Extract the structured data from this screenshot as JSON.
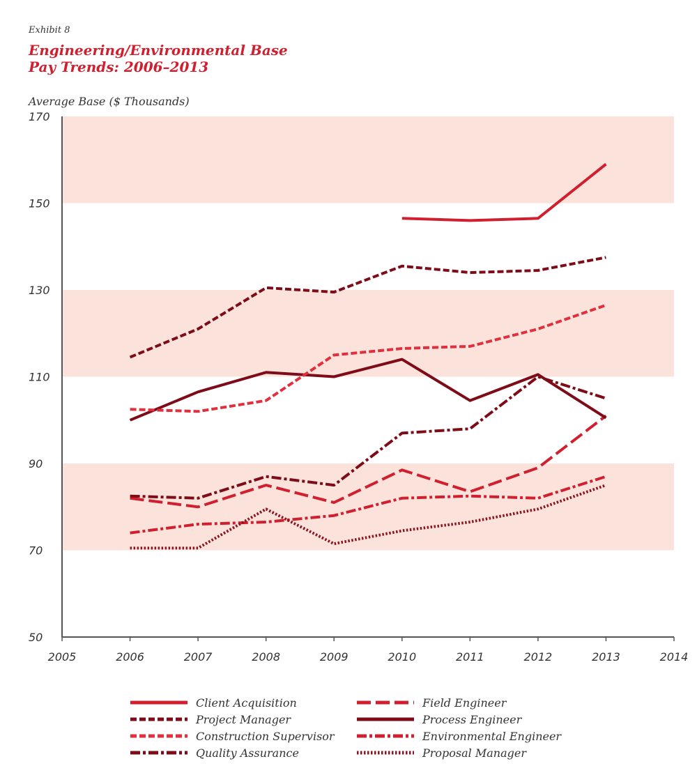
{
  "exhibit": "Exhibit 8",
  "title_lines": [
    "Engineering/Environmental Base",
    "Pay Trends: 2006–2013"
  ],
  "chart_data": {
    "type": "line",
    "ylabel": "Average Base ($ Thousands)",
    "xlim": [
      2005,
      2014
    ],
    "ylim": [
      50,
      170
    ],
    "x_ticks": [
      2005,
      2006,
      2007,
      2008,
      2009,
      2010,
      2011,
      2012,
      2013,
      2014
    ],
    "y_ticks": [
      50,
      70,
      90,
      110,
      130,
      150,
      170
    ],
    "bands": [
      [
        70,
        90
      ],
      [
        110,
        130
      ],
      [
        150,
        170
      ]
    ],
    "band_color": "#fbe3dc",
    "legend_placement": "bottom",
    "series": [
      {
        "name": "Client Acquisition",
        "color": "#d0202f",
        "style": "solid",
        "x": [
          2010,
          2011,
          2012,
          2013
        ],
        "y": [
          146.5,
          146,
          146.5,
          159
        ]
      },
      {
        "name": "Field Engineer",
        "color": "#d0202f",
        "style": "longdash",
        "x": [
          2006,
          2007,
          2008,
          2009,
          2010,
          2011,
          2012,
          2013
        ],
        "y": [
          82,
          80,
          85,
          81,
          88.5,
          83.5,
          89,
          101
        ]
      },
      {
        "name": "Project Manager",
        "color": "#7d0c18",
        "style": "dash",
        "x": [
          2006,
          2007,
          2008,
          2009,
          2010,
          2011,
          2012,
          2013
        ],
        "y": [
          114.5,
          121,
          130.5,
          129.5,
          135.5,
          134,
          134.5,
          137.5
        ]
      },
      {
        "name": "Process Engineer",
        "color": "#7d0c18",
        "style": "solid",
        "x": [
          2006,
          2007,
          2008,
          2009,
          2010,
          2011,
          2012,
          2013
        ],
        "y": [
          100,
          106.5,
          111,
          110,
          114,
          104.5,
          110.5,
          100.5
        ]
      },
      {
        "name": "Construction Supervisor",
        "color": "#e0303d",
        "style": "dash",
        "x": [
          2006,
          2007,
          2008,
          2009,
          2010,
          2011,
          2012,
          2013
        ],
        "y": [
          102.5,
          102,
          104.5,
          115,
          116.5,
          117,
          121,
          126.5
        ]
      },
      {
        "name": "Environmental Engineer",
        "color": "#d0202f",
        "style": "dashdot",
        "x": [
          2006,
          2007,
          2008,
          2009,
          2010,
          2011,
          2012,
          2013
        ],
        "y": [
          74,
          76,
          76.5,
          78,
          82,
          82.5,
          82,
          87
        ]
      },
      {
        "name": "Quality Assurance",
        "color": "#7d0c18",
        "style": "dashdot",
        "x": [
          2006,
          2007,
          2008,
          2009,
          2010,
          2011,
          2012,
          2013
        ],
        "y": [
          82.5,
          82,
          87,
          85,
          97,
          98,
          110,
          105
        ]
      },
      {
        "name": "Proposal Manager",
        "color": "#8b1520",
        "style": "dot",
        "x": [
          2006,
          2007,
          2008,
          2009,
          2010,
          2011,
          2012,
          2013
        ],
        "y": [
          70.5,
          70.5,
          79.5,
          71.5,
          74.5,
          76.5,
          79.5,
          85
        ]
      }
    ]
  }
}
